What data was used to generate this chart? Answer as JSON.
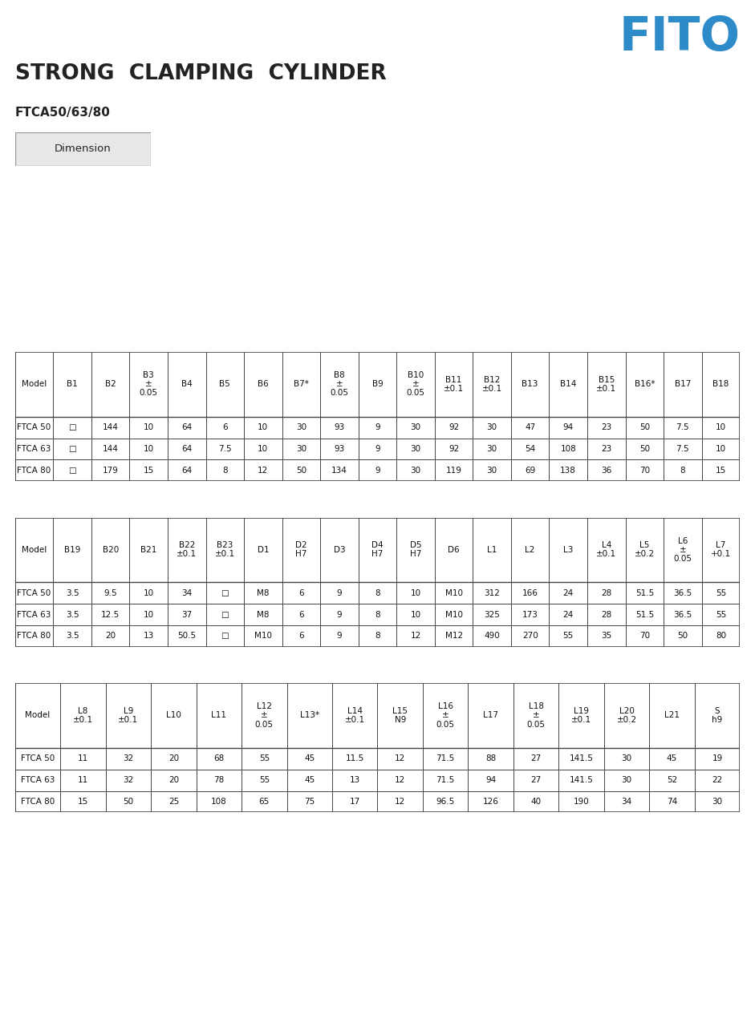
{
  "title": "STRONG  CLAMPING  CYLINDER",
  "subtitle": "FTCA50/63/80",
  "fito_color": "#2e8bc9",
  "dimension_label": "Dimension",
  "table1": {
    "headers": [
      "Model",
      "B1",
      "B2",
      "B3\n±\n0.05",
      "B4",
      "B5",
      "B6",
      "B7*",
      "B8\n±\n0.05",
      "B9",
      "B10\n±\n0.05",
      "B11\n±0.1",
      "B12\n±0.1",
      "B13",
      "B14",
      "B15\n±0.1",
      "B16*",
      "B17",
      "B18"
    ],
    "rows": [
      [
        "FTCA 50",
        "□",
        "144",
        "10",
        "64",
        "6",
        "10",
        "30",
        "93",
        "9",
        "30",
        "92",
        "30",
        "47",
        "94",
        "23",
        "50",
        "7.5",
        "10"
      ],
      [
        "FTCA 63",
        "□",
        "144",
        "10",
        "64",
        "7.5",
        "10",
        "30",
        "93",
        "9",
        "30",
        "92",
        "30",
        "54",
        "108",
        "23",
        "50",
        "7.5",
        "10"
      ],
      [
        "FTCA 80",
        "□",
        "179",
        "15",
        "64",
        "8",
        "12",
        "50",
        "134",
        "9",
        "30",
        "119",
        "30",
        "69",
        "138",
        "36",
        "70",
        "8",
        "15"
      ]
    ]
  },
  "table2": {
    "headers": [
      "Model",
      "B19",
      "B20",
      "B21",
      "B22\n±0.1",
      "B23\n±0.1",
      "D1",
      "D2\nH7",
      "D3",
      "D4\nH7",
      "D5\nH7",
      "D6",
      "L1",
      "L2",
      "L3",
      "L4\n±0.1",
      "L5\n±0.2",
      "L6\n±\n0.05",
      "L7\n+0.1"
    ],
    "rows": [
      [
        "FTCA 50",
        "3.5",
        "9.5",
        "10",
        "34",
        "□",
        "M8",
        "6",
        "9",
        "8",
        "10",
        "M10",
        "312",
        "166",
        "24",
        "28",
        "51.5",
        "36.5",
        "55"
      ],
      [
        "FTCA 63",
        "3.5",
        "12.5",
        "10",
        "37",
        "□",
        "M8",
        "6",
        "9",
        "8",
        "10",
        "M10",
        "325",
        "173",
        "24",
        "28",
        "51.5",
        "36.5",
        "55"
      ],
      [
        "FTCA 80",
        "3.5",
        "20",
        "13",
        "50.5",
        "□",
        "M10",
        "6",
        "9",
        "8",
        "12",
        "M12",
        "490",
        "270",
        "55",
        "35",
        "70",
        "50",
        "80"
      ]
    ]
  },
  "table3": {
    "headers": [
      "Model",
      "L8\n±0.1",
      "L9\n±0.1",
      "L10",
      "L11",
      "L12\n±\n0.05",
      "L13*",
      "L14\n±0.1",
      "L15\nN9",
      "L16\n±\n0.05",
      "L17",
      "L18\n±\n0.05",
      "L19\n±0.1",
      "L20\n±0.2",
      "L21",
      "S\nh9"
    ],
    "rows": [
      [
        "FTCA 50",
        "11",
        "32",
        "20",
        "68",
        "55",
        "45",
        "11.5",
        "12",
        "71.5",
        "88",
        "27",
        "141.5",
        "30",
        "45",
        "19"
      ],
      [
        "FTCA 63",
        "11",
        "32",
        "20",
        "78",
        "55",
        "45",
        "13",
        "12",
        "71.5",
        "94",
        "27",
        "141.5",
        "30",
        "52",
        "22"
      ],
      [
        "FTCA 80",
        "15",
        "50",
        "25",
        "108",
        "65",
        "75",
        "17",
        "12",
        "96.5",
        "126",
        "40",
        "190",
        "34",
        "74",
        "30"
      ]
    ]
  }
}
